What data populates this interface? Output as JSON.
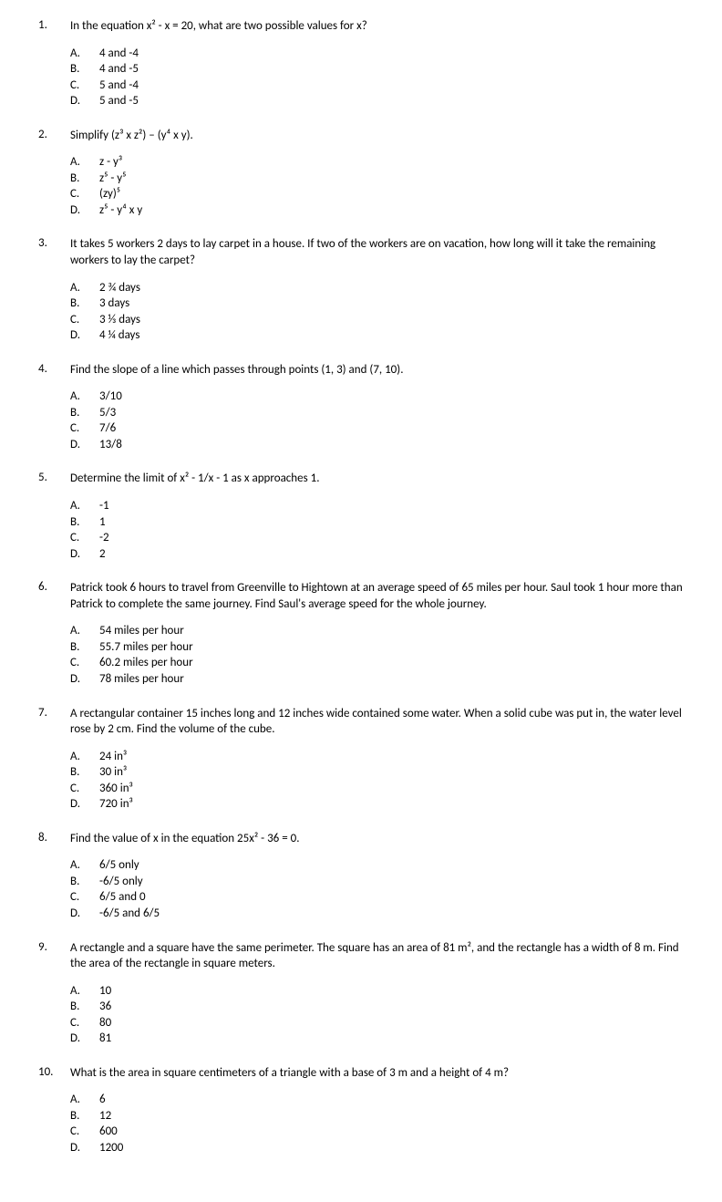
{
  "questions": [
    {
      "num": "1.",
      "text": "In the equation x² - x = 20, what are two possible values for x?",
      "options": [
        {
          "letter": "A.",
          "text": "4 and -4"
        },
        {
          "letter": "B.",
          "text": "4 and -5"
        },
        {
          "letter": "C.",
          "text": "5 and -4"
        },
        {
          "letter": "D.",
          "text": "5 and -5"
        }
      ]
    },
    {
      "num": "2.",
      "text": "Simplify (z³ x z²) – (y⁴ x y).",
      "options": [
        {
          "letter": "A.",
          "text": "z - y³"
        },
        {
          "letter": "B.",
          "text": "z⁵ - y⁵"
        },
        {
          "letter": "C.",
          "text": "(zy)⁵"
        },
        {
          "letter": "D.",
          "text": "z⁵ - y⁴ x y"
        }
      ]
    },
    {
      "num": "3.",
      "text": "It takes 5 workers 2 days to lay carpet in a house. If two of the workers are on vacation, how long will it take the remaining workers to lay the carpet?",
      "options": [
        {
          "letter": "A.",
          "text": "2 ¾ days"
        },
        {
          "letter": "B.",
          "text": "3 days"
        },
        {
          "letter": "C.",
          "text": "3 ⅓ days"
        },
        {
          "letter": "D.",
          "text": "4 ¼ days"
        }
      ]
    },
    {
      "num": "4.",
      "text": "Find the slope of a line which passes through points (1, 3) and (7, 10).",
      "options": [
        {
          "letter": "A.",
          "text": "3/10"
        },
        {
          "letter": "B.",
          "text": "5/3"
        },
        {
          "letter": "C.",
          "text": "7/6"
        },
        {
          "letter": "D.",
          "text": "13/8"
        }
      ]
    },
    {
      "num": "5.",
      "text": "Determine the limit of x² - 1/x - 1 as x approaches 1.",
      "options": [
        {
          "letter": "A.",
          "text": "-1"
        },
        {
          "letter": "B.",
          "text": "1"
        },
        {
          "letter": "C.",
          "text": "-2"
        },
        {
          "letter": "D.",
          "text": "2"
        }
      ]
    },
    {
      "num": "6.",
      "text": "Patrick took 6 hours to travel from Greenville to Hightown at an average speed of 65 miles per hour.  Saul took 1 hour more than Patrick to complete the same journey.  Find Saul's average speed for the whole journey.",
      "options": [
        {
          "letter": "A.",
          "text": "54 miles per hour"
        },
        {
          "letter": "B.",
          "text": "55.7 miles per hour"
        },
        {
          "letter": "C.",
          "text": "60.2 miles per hour"
        },
        {
          "letter": "D.",
          "text": "78 miles per hour"
        }
      ]
    },
    {
      "num": "7.",
      "text": "A rectangular container 15 inches long and 12 inches wide contained some water.  When a solid cube was put in, the water level rose by 2 cm.  Find the volume of the cube.",
      "options": [
        {
          "letter": "A.",
          "text": "24 in³"
        },
        {
          "letter": "B.",
          "text": "30 in³"
        },
        {
          "letter": "C.",
          "text": "360 in³"
        },
        {
          "letter": "D.",
          "text": "720 in³"
        }
      ]
    },
    {
      "num": "8.",
      "text": "Find the value of x in the equation 25x² - 36 = 0.",
      "options": [
        {
          "letter": "A.",
          "text": "6/5 only"
        },
        {
          "letter": "B.",
          "text": "-6/5 only"
        },
        {
          "letter": "C.",
          "text": "6/5 and 0"
        },
        {
          "letter": "D.",
          "text": "-6/5 and 6/5"
        }
      ]
    },
    {
      "num": "9.",
      "text": "A rectangle and a square have the same perimeter. The square has an area of 81 m², and the rectangle has a width of 8 m. Find the area of the rectangle in square meters.",
      "options": [
        {
          "letter": "A.",
          "text": "10"
        },
        {
          "letter": "B.",
          "text": "36"
        },
        {
          "letter": "C.",
          "text": "80"
        },
        {
          "letter": "D.",
          "text": "81"
        }
      ]
    },
    {
      "num": "10.",
      "text": "What is the area in square centimeters of a triangle with a base of 3 m and a height of 4 m?",
      "options": [
        {
          "letter": "A.",
          "text": "6"
        },
        {
          "letter": "B.",
          "text": "12"
        },
        {
          "letter": "C.",
          "text": "600"
        },
        {
          "letter": "D.",
          "text": "1200"
        }
      ]
    }
  ]
}
